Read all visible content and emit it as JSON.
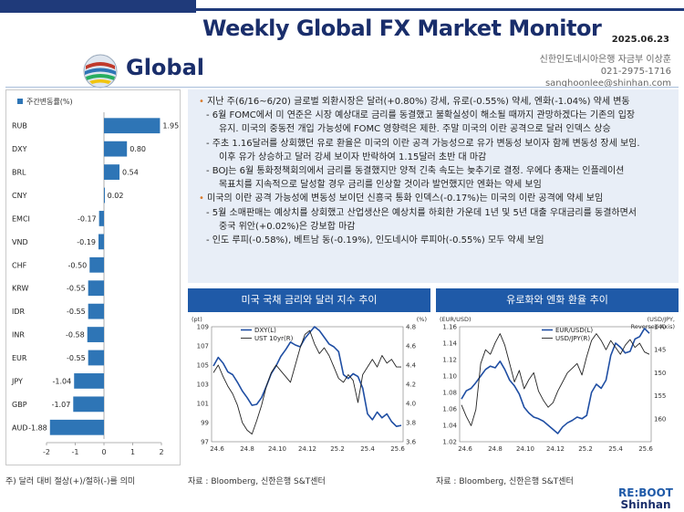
{
  "header": {
    "title": "Weekly Global FX Market Monitor",
    "date": "2025.06.23",
    "brand": "Global",
    "author_line1": "신한인도네시아은행 자금부 이상훈",
    "author_line2": "021-2975-1716",
    "author_line3": "sanghoonlee@shinhan.com"
  },
  "bullets": [
    {
      "level": 1,
      "marker": "•",
      "text": "지난 주(6/16~6/20) 글로벌 외환시장은 달러(+0.80%) 강세, 유로(-0.55%) 약세, 엔화(-1.04%) 약세 변동"
    },
    {
      "level": 2,
      "marker": "-",
      "text": "6월 FOMC에서 미 연준은 시장 예상대로 금리를 동결했고 불확실성이 해소될 때까지 관망하겠다는 기존의 입장"
    },
    {
      "level": 3,
      "marker": "",
      "text": "유지. 미국의 중동전 개입 가능성에 FOMC 영향력은 제한. 주말 미국의 이란 공격으로 달러 인덱스 상승"
    },
    {
      "level": 2,
      "marker": "-",
      "text": "주초 1.16달러를 상회했던 유로 환율은 미국의 이란 공격 가능성으로 유가 변동성 보이자 함께 변동성 장세 보임."
    },
    {
      "level": 3,
      "marker": "",
      "text": "이후 유가 상승하고 달러 강세 보이자 반락하여 1.15달러 초반 대 마감"
    },
    {
      "level": 2,
      "marker": "-",
      "text": "BOJ는 6월 통화정책회의에서 금리를 동결했지만 양적 긴축 속도는 늦추기로 결정. 우에다 총재는 인플레이션"
    },
    {
      "level": 3,
      "marker": "",
      "text": "목표치를 지속적으로 달성할 경우 금리를 인상할 것이라 발언했지만 엔화는 약세 보임"
    },
    {
      "level": 1,
      "marker": "•",
      "text": "미국의 이란 공격 가능성에 변동성 보이던 신흥국 통화 인덱스(-0.17%)는 미국의 이란 공격에 약세 보임"
    },
    {
      "level": 2,
      "marker": "-",
      "text": "5월 소매판매는 예상치를 상회했고 산업생산은 예상치를 하회한 가운데 1년 및 5년 대출 우대금리를 동결하면서"
    },
    {
      "level": 3,
      "marker": "",
      "text": "중국 위안(+0.02%)은 강보합 마감"
    },
    {
      "level": 2,
      "marker": "-",
      "text": "인도 루피(-0.58%), 베트남 동(-0.19%), 인도네시아 루피아(-0.55%) 모두 약세 보임"
    }
  ],
  "bar_panel": {
    "note": "주) 달러 대비 절상(+)/절하(-)를 의미"
  },
  "chart_data": [
    {
      "type": "bar",
      "orientation": "horizontal",
      "legend": "주간변동률(%)",
      "categories": [
        "RUB",
        "DXY",
        "BRL",
        "CNY",
        "EMCI",
        "VND",
        "CHF",
        "KRW",
        "IDR",
        "INR",
        "EUR",
        "JPY",
        "GBP",
        "AUD"
      ],
      "values": [
        1.95,
        0.8,
        0.54,
        0.02,
        -0.17,
        -0.19,
        -0.5,
        -0.55,
        -0.55,
        -0.58,
        -0.55,
        -1.04,
        -1.07,
        -1.88
      ],
      "labels": [
        "1.95",
        "0.80",
        "0.54",
        "0.02",
        "-0.17",
        "-0.19",
        "-0.50",
        "-0.55",
        "-0.55",
        "-0.58",
        "-0.55",
        "-1.04",
        "-1.07",
        "-1.88"
      ],
      "xlim": [
        -2,
        2
      ],
      "xticks": [
        "-2",
        "-1",
        "0",
        "1",
        "2"
      ],
      "color": "#2e75b6"
    },
    {
      "type": "line",
      "title": "미국 국채 금리와 달러 지수 추이",
      "left_unit": "(pt)",
      "right_unit": "(%)",
      "left_ylim": [
        97,
        109
      ],
      "left_ticks": [
        "97",
        "99",
        "101",
        "103",
        "105",
        "107",
        "109"
      ],
      "right_ylim": [
        3.6,
        4.8
      ],
      "right_ticks": [
        "3.6",
        "3.8",
        "4.0",
        "4.2",
        "4.4",
        "4.6",
        "4.8"
      ],
      "x_ticks": [
        "24.6",
        "24.8",
        "24.10",
        "24.12",
        "25.2",
        "25.4",
        "25.6"
      ],
      "series": [
        {
          "name": "DXY(L)",
          "axis": "left",
          "color": "#1f4ea3",
          "values": [
            104.9,
            105.8,
            105.2,
            104.3,
            104.0,
            103.2,
            102.3,
            101.6,
            100.8,
            100.9,
            101.6,
            102.8,
            104.1,
            104.9,
            105.9,
            106.6,
            107.4,
            107.1,
            106.9,
            107.8,
            108.4,
            109.0,
            108.6,
            107.9,
            107.2,
            106.9,
            106.4,
            104.0,
            103.6,
            104.1,
            103.8,
            102.6,
            99.9,
            99.3,
            100.1,
            99.5,
            99.9,
            99.1,
            98.6,
            98.7
          ]
        },
        {
          "name": "UST 10yr(R)",
          "axis": "right",
          "color": "#222222",
          "values": [
            4.32,
            4.4,
            4.28,
            4.18,
            4.1,
            3.98,
            3.8,
            3.72,
            3.68,
            3.82,
            3.98,
            4.18,
            4.32,
            4.4,
            4.34,
            4.28,
            4.22,
            4.4,
            4.58,
            4.72,
            4.76,
            4.62,
            4.52,
            4.58,
            4.5,
            4.38,
            4.26,
            4.22,
            4.3,
            4.24,
            4.01,
            4.3,
            4.38,
            4.46,
            4.38,
            4.5,
            4.42,
            4.46,
            4.38,
            4.38
          ]
        }
      ]
    },
    {
      "type": "line",
      "title": "유로화와 엔화 환율 추이",
      "left_unit": "(EUR/USD)",
      "right_unit": "(USD/JPY, Reversed Axis)",
      "left_ylim": [
        1.02,
        1.16
      ],
      "left_ticks": [
        "1.02",
        "1.04",
        "1.06",
        "1.08",
        "1.10",
        "1.12",
        "1.14",
        "1.16"
      ],
      "right_ylim": [
        165,
        140
      ],
      "right_ticks": [
        "140",
        "145",
        "150",
        "155",
        "160"
      ],
      "x_ticks": [
        "24.6",
        "24.8",
        "24.10",
        "24.12",
        "25.2",
        "25.4",
        "25.6"
      ],
      "series": [
        {
          "name": "EUR/USD(L)",
          "axis": "left",
          "color": "#1f4ea3",
          "values": [
            1.072,
            1.082,
            1.085,
            1.092,
            1.1,
            1.108,
            1.112,
            1.11,
            1.118,
            1.108,
            1.095,
            1.088,
            1.078,
            1.062,
            1.055,
            1.05,
            1.048,
            1.045,
            1.04,
            1.035,
            1.03,
            1.038,
            1.043,
            1.046,
            1.05,
            1.048,
            1.052,
            1.08,
            1.09,
            1.085,
            1.095,
            1.125,
            1.14,
            1.135,
            1.128,
            1.13,
            1.145,
            1.148,
            1.158,
            1.152
          ]
        },
        {
          "name": "USD/JPY(R)",
          "axis": "right",
          "color": "#222222",
          "values": [
            157.0,
            159.5,
            161.5,
            158.0,
            148.0,
            145.0,
            146.0,
            143.5,
            141.5,
            144.0,
            148.0,
            152.0,
            149.5,
            153.5,
            151.5,
            150.0,
            154.0,
            156.0,
            157.5,
            156.5,
            154.0,
            152.0,
            150.0,
            149.0,
            148.0,
            150.5,
            146.5,
            143.0,
            141.5,
            143.0,
            145.0,
            143.0,
            144.5,
            146.0,
            144.0,
            142.8,
            144.5,
            143.6,
            145.5,
            146.0
          ]
        }
      ]
    }
  ],
  "sources": {
    "left": "자료 : Bloomberg, 신한은행 S&T센터",
    "right": "자료 : Bloomberg, 신한은행 S&T센터"
  },
  "logo": {
    "line1": "RE:BOOT",
    "line2": "Shinhan"
  }
}
